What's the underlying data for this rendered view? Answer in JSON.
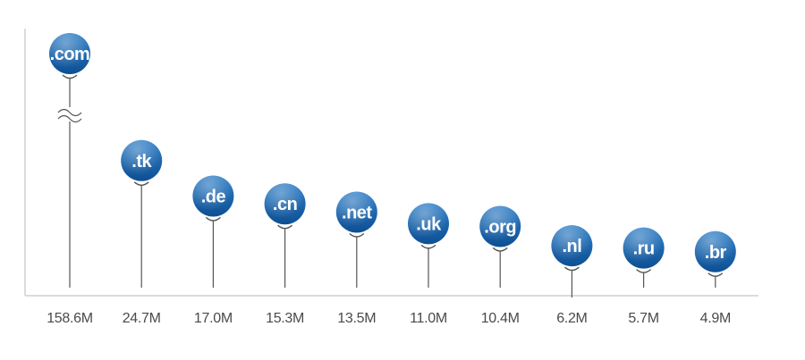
{
  "chart_data": {
    "type": "scatter",
    "categories": [
      ".com",
      ".tk",
      ".de",
      ".cn",
      ".net",
      ".uk",
      ".org",
      ".nl",
      ".ru",
      ".br"
    ],
    "values": [
      158.6,
      24.7,
      17.0,
      15.3,
      13.5,
      11.0,
      10.4,
      6.2,
      5.7,
      4.9
    ],
    "value_labels": [
      "158.6M",
      "24.7M",
      "17.0M",
      "15.3M",
      "13.5M",
      "11.0M",
      "10.4M",
      "6.2M",
      "5.7M",
      "4.9M"
    ],
    "unit": "M",
    "axis_break_after_first": true,
    "grid": false,
    "legend": false,
    "title": "",
    "xlabel": "",
    "ylabel": ""
  },
  "colors": {
    "pin_top": "#2f7fc7",
    "pin_bottom": "#0e4f93",
    "stem": "#555555",
    "axis": "#cfcfcf",
    "label_text": "#4a4a4a",
    "pin_text": "#ffffff"
  }
}
